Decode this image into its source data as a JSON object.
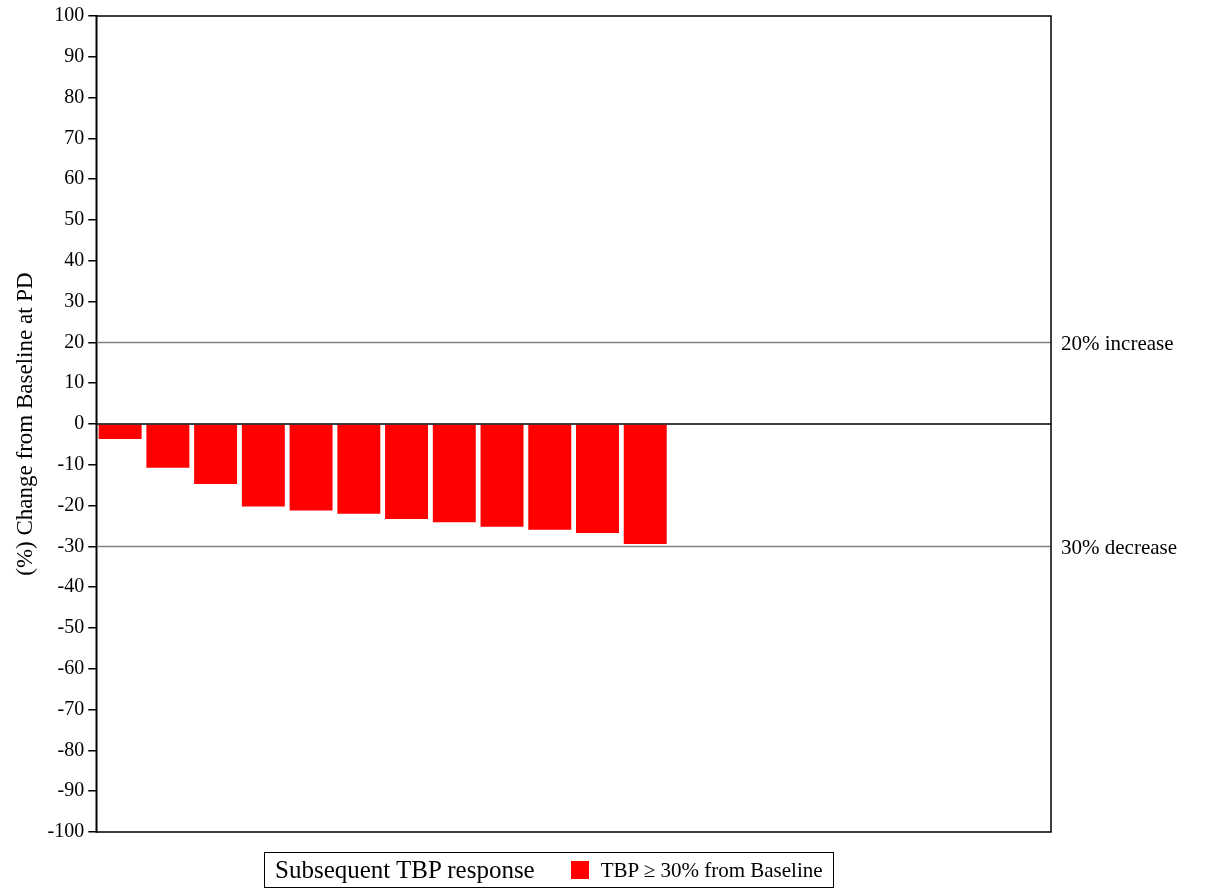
{
  "chart_data": {
    "type": "bar",
    "ylabel": "(%) Change from Baseline at PD",
    "categories": [
      null,
      null,
      null,
      null,
      null,
      null,
      null,
      null,
      null,
      null,
      null,
      null,
      null,
      null,
      null,
      null,
      null,
      null,
      null,
      null
    ],
    "series": [
      {
        "name": "TBP ≥ 30% from Baseline",
        "color": "#ff0000",
        "values": [
          -3.7,
          -10.7,
          -14.7,
          -20.2,
          -21.2,
          -22.0,
          -23.3,
          -24.1,
          -25.2,
          -25.9,
          -26.7,
          -29.4,
          null,
          null,
          null,
          null,
          null,
          null,
          null,
          null
        ]
      }
    ],
    "ylim": [
      -100,
      100
    ],
    "yticks": [
      -100,
      -90,
      -80,
      -70,
      -60,
      -50,
      -40,
      -30,
      -20,
      -10,
      0,
      10,
      20,
      30,
      40,
      50,
      60,
      70,
      80,
      90,
      100
    ],
    "ref_lines": [
      {
        "axis": "y",
        "value": 20,
        "label": "20% increase",
        "color": "#808080"
      },
      {
        "axis": "y",
        "value": -30,
        "label": "30% decrease",
        "color": "#808080"
      }
    ],
    "grid": false,
    "legend": "bottom",
    "legend_title": "Subsequent TBP response",
    "tick_labels": "y"
  }
}
